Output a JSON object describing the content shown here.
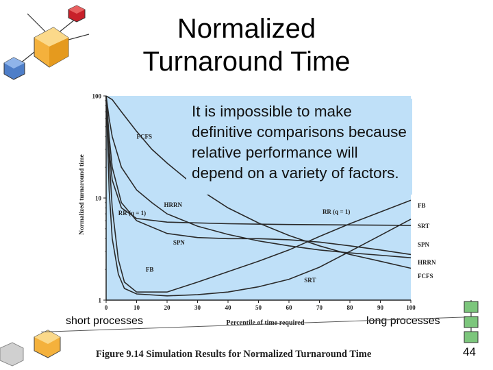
{
  "slide": {
    "title_line1": "Normalized",
    "title_line2": "Turnaround Time",
    "callout": "It is impossible to make definitive comparisons because relative performance will depend on a variety of factors.",
    "short_label": "short processes",
    "long_label": "long processes",
    "caption": "Figure 9.14  Simulation Results for Normalized Turnaround Time",
    "page_number": "44"
  },
  "colors": {
    "plot_background": "#bfe0f8",
    "curve": "#2a2a2a",
    "text": "#000000"
  },
  "chart_data": {
    "type": "line",
    "xlabel": "Percentile of time required",
    "ylabel": "Normalized turnaround time",
    "xlim": [
      0,
      100
    ],
    "ylim": [
      1,
      100
    ],
    "yscale": "log",
    "xticks": [
      "0",
      "10",
      "20",
      "30",
      "40",
      "50",
      "60",
      "70",
      "80",
      "90",
      "100"
    ],
    "yticks": [
      "1",
      "10",
      "100"
    ],
    "series": [
      {
        "name": "FCFS",
        "x": [
          0,
          2,
          5,
          10,
          15,
          20,
          30,
          40,
          50,
          60,
          70,
          80,
          90,
          100
        ],
        "y": [
          100,
          92,
          70,
          45,
          30,
          22,
          12.5,
          8,
          5.7,
          4.3,
          3.4,
          2.8,
          2.4,
          2.05
        ]
      },
      {
        "name": "HRRN",
        "x": [
          0,
          1,
          2,
          5,
          10,
          15,
          20,
          30,
          40,
          50,
          60,
          70,
          80,
          90,
          100
        ],
        "y": [
          100,
          60,
          40,
          20,
          12,
          9,
          7,
          5.3,
          4.4,
          3.8,
          3.4,
          3.1,
          2.9,
          2.75,
          2.6
        ]
      },
      {
        "name": "RR (q = 1)",
        "x": [
          0,
          1,
          2,
          5,
          10,
          20,
          40,
          60,
          80,
          100
        ],
        "y": [
          90,
          30,
          15,
          8,
          6.3,
          5.8,
          5.6,
          5.5,
          5.45,
          5.4
        ]
      },
      {
        "name": "SPN",
        "x": [
          0,
          1,
          2,
          5,
          10,
          20,
          30,
          40,
          50,
          60,
          70,
          80,
          90,
          100
        ],
        "y": [
          100,
          40,
          20,
          9,
          6,
          4.5,
          4.1,
          4,
          4,
          3.9,
          3.7,
          3.4,
          3.1,
          2.8
        ]
      },
      {
        "name": "FB",
        "x": [
          0,
          1,
          2,
          4,
          6,
          10,
          20,
          30,
          40,
          50,
          60,
          70,
          80,
          90,
          100
        ],
        "y": [
          100,
          25,
          8,
          2.5,
          1.5,
          1.2,
          1.2,
          1.5,
          1.9,
          2.4,
          3.1,
          4.2,
          5.6,
          7.3,
          9.5
        ]
      },
      {
        "name": "SRT",
        "x": [
          0,
          1,
          2,
          4,
          6,
          10,
          20,
          30,
          40,
          50,
          60,
          70,
          80,
          90,
          100
        ],
        "y": [
          100,
          12,
          4,
          1.8,
          1.3,
          1.15,
          1.1,
          1.13,
          1.2,
          1.35,
          1.6,
          2.1,
          3.0,
          4.3,
          6.2
        ]
      }
    ],
    "annotations": [
      {
        "text": "FCFS",
        "x": 10,
        "y": 38
      },
      {
        "text": "HRRN",
        "x": 19,
        "y": 8.2
      },
      {
        "text": "RR (q = 1)",
        "x": 4,
        "y": 6.8
      },
      {
        "text": "SPN",
        "x": 22,
        "y": 3.5
      },
      {
        "text": "FB",
        "x": 13,
        "y": 1.9
      },
      {
        "text": "SRT",
        "x": 65,
        "y": 1.5
      },
      {
        "text": "RR (q = 1)",
        "x": 71,
        "y": 7.0
      }
    ],
    "right_labels": [
      "FB",
      "SRT",
      "SPN",
      "HRRN",
      "FCFS"
    ]
  }
}
